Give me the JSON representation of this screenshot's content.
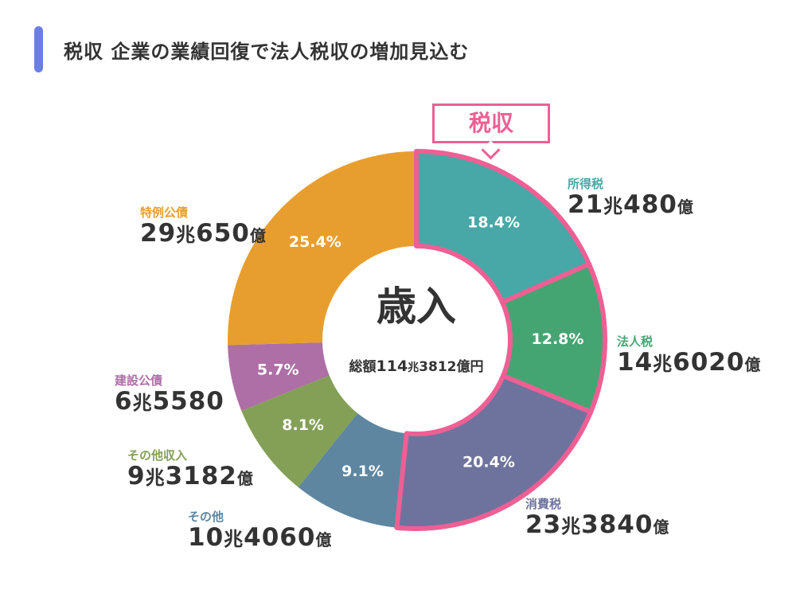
{
  "title": "税収 企業の業績回復で法人税収の増加見込む",
  "callout": "税収",
  "center": {
    "label": "歳入",
    "total_prefix": "総額",
    "total_cho": "114",
    "cho_unit": "兆",
    "total_oku": "3812",
    "total_unit": "億円"
  },
  "accent_color": "#ee5f94",
  "chart_data": {
    "type": "pie",
    "donut": true,
    "categories": [
      "所得税",
      "法人税",
      "消費税",
      "その他",
      "その他収入",
      "建設公債",
      "特例公債"
    ],
    "values": [
      18.4,
      12.8,
      20.4,
      9.1,
      8.1,
      5.7,
      25.4
    ],
    "value_labels": [
      "18.4%",
      "12.8%",
      "20.4%",
      "9.1%",
      "8.1%",
      "5.7%",
      "25.4%"
    ],
    "colors": [
      "#48a8a7",
      "#45a572",
      "#6e739e",
      "#5e86a0",
      "#83a056",
      "#ae6ea6",
      "#e89e2e"
    ],
    "highlighted_group": {
      "label": "税収",
      "categories": [
        "所得税",
        "法人税",
        "消費税"
      ]
    },
    "amounts": [
      {
        "cho": "21",
        "cho_unit": "兆",
        "oku": "480",
        "unit": "億"
      },
      {
        "cho": "14",
        "cho_unit": "兆",
        "oku": "6020",
        "unit": "億"
      },
      {
        "cho": "23",
        "cho_unit": "兆",
        "oku": "3840",
        "unit": "億"
      },
      {
        "cho": "10",
        "cho_unit": "兆",
        "oku": "4060",
        "unit": "億"
      },
      {
        "cho": "9",
        "cho_unit": "兆",
        "oku": "3182",
        "unit": "億"
      },
      {
        "cho": "6",
        "cho_unit": "兆",
        "oku": "5580",
        "unit": ""
      },
      {
        "cho": "29",
        "cho_unit": "兆",
        "oku": "650",
        "unit": "億"
      }
    ]
  }
}
